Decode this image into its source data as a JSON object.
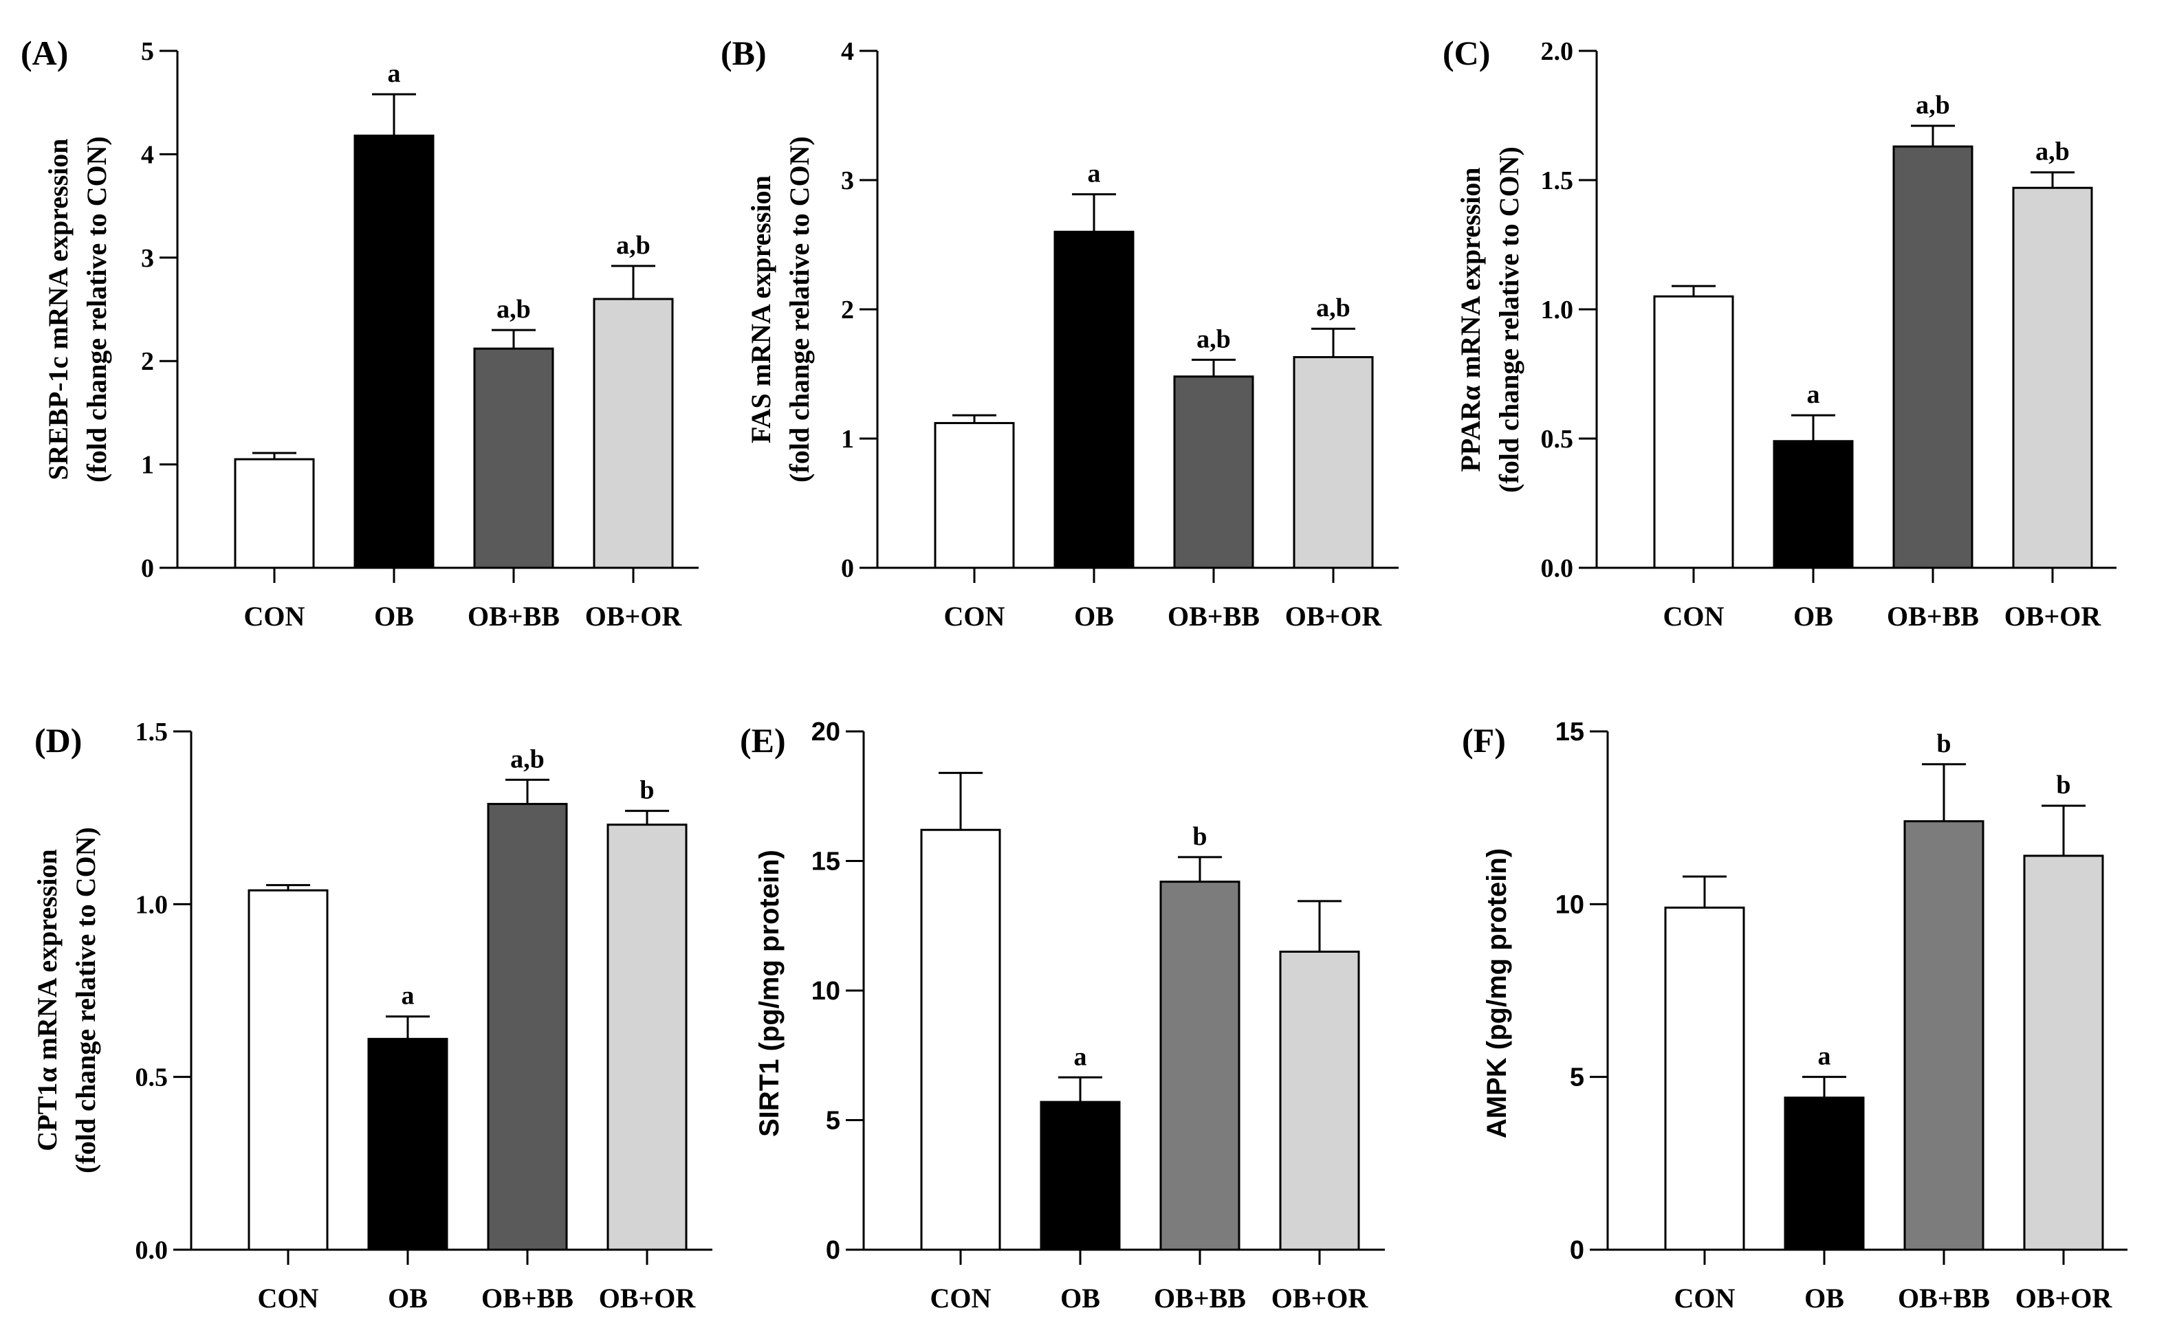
{
  "chart_data": [
    {
      "type": "bar",
      "panel_label": "(A)",
      "ylabel": [
        "SREBP-1c mRNA expression",
        "(fold change relative to CON)"
      ],
      "categories": [
        "CON",
        "OB",
        "OB+BB",
        "OB+OR"
      ],
      "values": [
        1.05,
        4.18,
        2.12,
        2.6
      ],
      "errors": [
        0.06,
        0.4,
        0.18,
        0.32
      ],
      "annotations": [
        "",
        "a",
        "a,b",
        "a,b"
      ],
      "colors": [
        "#ffffff",
        "#000000",
        "#5a5a5a",
        "#d4d4d4"
      ],
      "ylim": [
        0,
        5
      ],
      "yticks": [
        0,
        1,
        2,
        3,
        4,
        5
      ],
      "tick_labels": [
        "0",
        "1",
        "2",
        "3",
        "4",
        "5"
      ],
      "grid": false
    },
    {
      "type": "bar",
      "panel_label": "(B)",
      "ylabel": [
        "FAS mRNA expression",
        "(fold change relative to CON)"
      ],
      "categories": [
        "CON",
        "OB",
        "OB+BB",
        "OB+OR"
      ],
      "values": [
        1.12,
        2.6,
        1.48,
        1.63
      ],
      "errors": [
        0.06,
        0.29,
        0.13,
        0.22
      ],
      "annotations": [
        "",
        "a",
        "a,b",
        "a,b"
      ],
      "colors": [
        "#ffffff",
        "#000000",
        "#5a5a5a",
        "#d4d4d4"
      ],
      "ylim": [
        0,
        4
      ],
      "yticks": [
        0,
        1,
        2,
        3,
        4
      ],
      "tick_labels": [
        "0",
        "1",
        "2",
        "3",
        "4"
      ],
      "grid": false
    },
    {
      "type": "bar",
      "panel_label": "(C)",
      "ylabel": [
        "PPARα mRNA expression",
        "(fold change relative to CON)"
      ],
      "categories": [
        "CON",
        "OB",
        "OB+BB",
        "OB+OR"
      ],
      "values": [
        1.05,
        0.49,
        1.63,
        1.47
      ],
      "errors": [
        0.04,
        0.1,
        0.08,
        0.06
      ],
      "annotations": [
        "",
        "a",
        "a,b",
        "a,b"
      ],
      "colors": [
        "#ffffff",
        "#000000",
        "#5a5a5a",
        "#d4d4d4"
      ],
      "ylim": [
        0,
        2
      ],
      "yticks": [
        0,
        0.5,
        1,
        1.5,
        2
      ],
      "tick_labels": [
        "0.0",
        "0.5",
        "1.0",
        "1.5",
        "2.0"
      ],
      "grid": false
    },
    {
      "type": "bar",
      "panel_label": "(D)",
      "ylabel": [
        "CPT1α mRNA expression",
        "(fold change relative to CON)"
      ],
      "categories": [
        "CON",
        "OB",
        "OB+BB",
        "OB+OR"
      ],
      "values": [
        1.04,
        0.61,
        1.29,
        1.23
      ],
      "errors": [
        0.015,
        0.065,
        0.07,
        0.04
      ],
      "annotations": [
        "",
        "a",
        "a,b",
        "b"
      ],
      "colors": [
        "#ffffff",
        "#000000",
        "#5a5a5a",
        "#d4d4d4"
      ],
      "ylim": [
        0,
        1.5
      ],
      "yticks": [
        0,
        0.5,
        1,
        1.5
      ],
      "tick_labels": [
        "0.0",
        "0.5",
        "1.0",
        "1.5"
      ],
      "grid": false
    },
    {
      "type": "bar",
      "panel_label": "(E)",
      "ylabel": [
        "SIRT1 (pg/mg protein)"
      ],
      "categories": [
        "CON",
        "OB",
        "OB+BB",
        "OB+OR"
      ],
      "values": [
        16.2,
        5.7,
        14.2,
        11.5
      ],
      "errors": [
        2.2,
        0.95,
        0.95,
        1.95
      ],
      "annotations": [
        "",
        "a",
        "b",
        ""
      ],
      "colors": [
        "#ffffff",
        "#000000",
        "#7c7c7c",
        "#d4d4d4"
      ],
      "ylim": [
        0,
        20
      ],
      "yticks": [
        0,
        5,
        10,
        15,
        20
      ],
      "tick_labels": [
        "0",
        "5",
        "10",
        "15",
        "20"
      ],
      "grid": false
    },
    {
      "type": "bar",
      "panel_label": "(F)",
      "ylabel": [
        "AMPK (pg/mg protein)"
      ],
      "categories": [
        "CON",
        "OB",
        "OB+BB",
        "OB+OR"
      ],
      "values": [
        9.9,
        4.4,
        12.4,
        11.4
      ],
      "errors": [
        0.9,
        0.6,
        1.65,
        1.45
      ],
      "annotations": [
        "",
        "a",
        "b",
        "b"
      ],
      "colors": [
        "#ffffff",
        "#000000",
        "#7c7c7c",
        "#d4d4d4"
      ],
      "ylim": [
        0,
        15
      ],
      "yticks": [
        0,
        5,
        10,
        15
      ],
      "tick_labels": [
        "0",
        "5",
        "10",
        "15"
      ],
      "grid": false
    }
  ]
}
